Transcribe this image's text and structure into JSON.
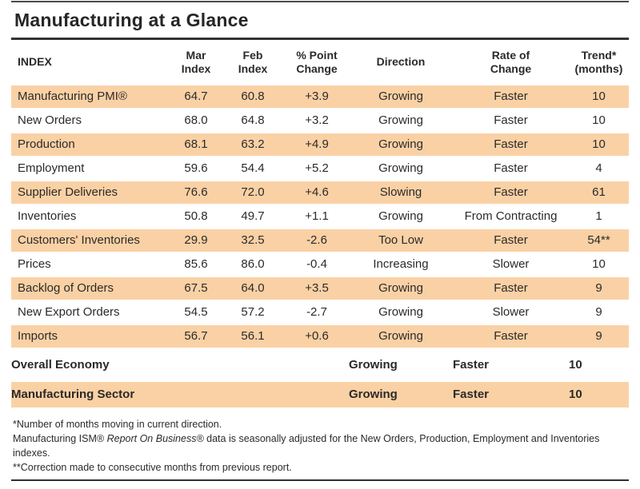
{
  "title": "Manufacturing at a Glance",
  "colors": {
    "row_highlight": "#FAD1A5",
    "text": "#2B2A29",
    "rule": "#333333"
  },
  "table": {
    "columns": [
      "INDEX",
      "Mar\nIndex",
      "Feb\nIndex",
      "% Point\nChange",
      "Direction",
      "Rate of\nChange",
      "Trend*\n(months)"
    ],
    "rows": [
      {
        "index": "Manufacturing PMI®",
        "mar": "64.7",
        "feb": "60.8",
        "change": "+3.9",
        "direction": "Growing",
        "rate": "Faster",
        "trend": "10"
      },
      {
        "index": "New Orders",
        "mar": "68.0",
        "feb": "64.8",
        "change": "+3.2",
        "direction": "Growing",
        "rate": "Faster",
        "trend": "10"
      },
      {
        "index": "Production",
        "mar": "68.1",
        "feb": "63.2",
        "change": "+4.9",
        "direction": "Growing",
        "rate": "Faster",
        "trend": "10"
      },
      {
        "index": "Employment",
        "mar": "59.6",
        "feb": "54.4",
        "change": "+5.2",
        "direction": "Growing",
        "rate": "Faster",
        "trend": "4"
      },
      {
        "index": "Supplier Deliveries",
        "mar": "76.6",
        "feb": "72.0",
        "change": "+4.6",
        "direction": "Slowing",
        "rate": "Faster",
        "trend": "61"
      },
      {
        "index": "Inventories",
        "mar": "50.8",
        "feb": "49.7",
        "change": "+1.1",
        "direction": "Growing",
        "rate": "From Contracting",
        "trend": "1"
      },
      {
        "index": "Customers' Inventories",
        "mar": "29.9",
        "feb": "32.5",
        "change": "-2.6",
        "direction": "Too Low",
        "rate": "Faster",
        "trend": "54**"
      },
      {
        "index": "Prices",
        "mar": "85.6",
        "feb": "86.0",
        "change": "-0.4",
        "direction": "Increasing",
        "rate": "Slower",
        "trend": "10"
      },
      {
        "index": "Backlog of Orders",
        "mar": "67.5",
        "feb": "64.0",
        "change": "+3.5",
        "direction": "Growing",
        "rate": "Faster",
        "trend": "9"
      },
      {
        "index": "New Export Orders",
        "mar": "54.5",
        "feb": "57.2",
        "change": "-2.7",
        "direction": "Growing",
        "rate": "Slower",
        "trend": "9"
      },
      {
        "index": "Imports",
        "mar": "56.7",
        "feb": "56.1",
        "change": "+0.6",
        "direction": "Growing",
        "rate": "Faster",
        "trend": "9"
      }
    ],
    "summary_rows": [
      {
        "index": "Overall Economy",
        "direction": "Growing",
        "rate": "Faster",
        "trend": "10"
      },
      {
        "index": "Manufacturing Sector",
        "direction": "Growing",
        "rate": "Faster",
        "trend": "10"
      }
    ]
  },
  "footnotes": {
    "line1": "*Number of months moving in current direction.",
    "line2_prefix": "Manufacturing ISM® ",
    "line2_italic": "Report On Business®",
    "line2_suffix": " data is seasonally adjusted for the New Orders, Production, Employment and Inventories indexes.",
    "line3": "**Correction made to consecutive months from previous report."
  }
}
